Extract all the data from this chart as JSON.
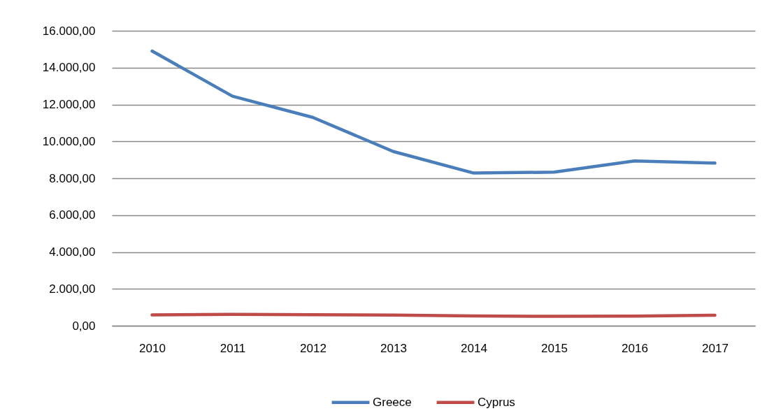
{
  "chart_data": {
    "type": "line",
    "categories": [
      "2010",
      "2011",
      "2012",
      "2013",
      "2014",
      "2015",
      "2016",
      "2017"
    ],
    "series": [
      {
        "name": "Greece",
        "color": "#4a7ebb",
        "values": [
          14900,
          12450,
          11300,
          9450,
          8280,
          8330,
          8940,
          8820
        ]
      },
      {
        "name": "Cyprus",
        "color": "#be4b48",
        "values": [
          590,
          620,
          600,
          580,
          530,
          510,
          520,
          570
        ]
      }
    ],
    "ylim": [
      0,
      16000
    ],
    "yticks": [
      {
        "value": 0,
        "label": "0,00"
      },
      {
        "value": 2000,
        "label": "2.000,00"
      },
      {
        "value": 4000,
        "label": "4.000,00"
      },
      {
        "value": 6000,
        "label": "6.000,00"
      },
      {
        "value": 8000,
        "label": "8.000,00"
      },
      {
        "value": 10000,
        "label": "10.000,00"
      },
      {
        "value": 12000,
        "label": "12.000,00"
      },
      {
        "value": 14000,
        "label": "14.000,00"
      },
      {
        "value": 16000,
        "label": "16.000,00"
      }
    ],
    "grid": "y",
    "legend": "bottom",
    "marker": "none",
    "line_style": "solid"
  }
}
